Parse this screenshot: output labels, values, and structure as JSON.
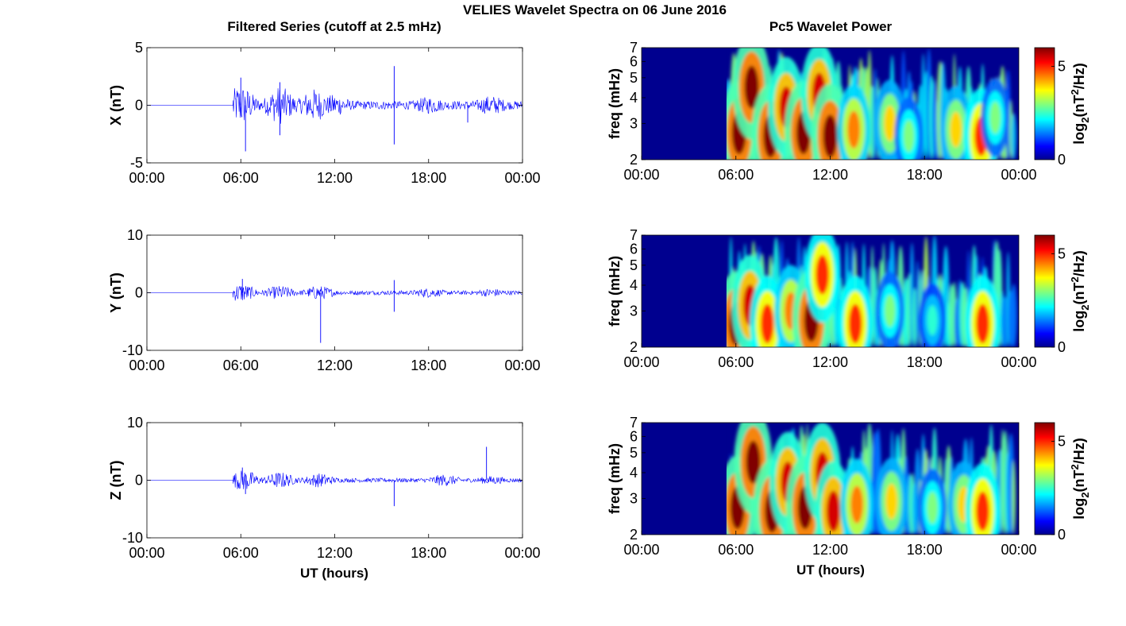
{
  "figure": {
    "title": "VELIES Wavelet Spectra on 06 June 2016",
    "left_column_title": "Filtered Series (cutoff at 2.5 mHz)",
    "right_column_title": "Pc5 Wavelet Power",
    "x_axis_label": "UT (hours)",
    "x_tick_labels": [
      "00:00",
      "06:00",
      "12:00",
      "18:00",
      "00:00"
    ],
    "colorbar_label": "log2(nT2/Hz)",
    "colorbar_label_parts": {
      "base": "log",
      "sub": "2",
      "mid": "(nT",
      "sup": "2",
      "end": "/Hz)"
    },
    "colors": {
      "series_line": "#0000ff",
      "zero_line": "#4040ff",
      "background_map": "#00008f"
    }
  },
  "chart_data": [
    {
      "type": "line",
      "panel": "X filtered series",
      "ylabel": "X (nT)",
      "ylim": [
        -5,
        5
      ],
      "yticks": [
        "5",
        "0",
        "-5"
      ],
      "xlim_hours": [
        0,
        24
      ],
      "x_ticks_hours": [
        0,
        6,
        12,
        18,
        24
      ],
      "series": [
        {
          "name": "",
          "x_hours": [
            0,
            5.5,
            5.6,
            6.0,
            6.3,
            8.5,
            11.0,
            15.8,
            18.0,
            21.0,
            24.0
          ],
          "y": [
            0,
            0,
            0.8,
            2.4,
            -4.0,
            2.0,
            -1.3,
            3.4,
            -0.6,
            -1.5,
            0.3
          ]
        }
      ],
      "spikes": [
        {
          "x_hours": 6.0,
          "y": 2.4
        },
        {
          "x_hours": 6.3,
          "y": -4.0
        },
        {
          "x_hours": 8.5,
          "y": 2.0
        },
        {
          "x_hours": 8.5,
          "y": -2.6
        },
        {
          "x_hours": 15.8,
          "y": 3.4
        },
        {
          "x_hours": 15.8,
          "y": -3.4
        },
        {
          "x_hours": 20.5,
          "y": -1.5
        }
      ],
      "onset_hours": 5.5,
      "envelope_peaks": [
        {
          "x_hours": 6.0,
          "amp": 1.5
        },
        {
          "x_hours": 8.5,
          "amp": 1.4
        },
        {
          "x_hours": 10.7,
          "amp": 1.2
        },
        {
          "x_hours": 12.0,
          "amp": 0.7
        },
        {
          "x_hours": 18.0,
          "amp": 0.5
        },
        {
          "x_hours": 22.0,
          "amp": 0.6
        }
      ]
    },
    {
      "type": "line",
      "panel": "Y filtered series",
      "ylabel": "Y (nT)",
      "ylim": [
        -10,
        10
      ],
      "yticks": [
        "10",
        "0",
        "-10"
      ],
      "xlim_hours": [
        0,
        24
      ],
      "x_ticks_hours": [
        0,
        6,
        12,
        18,
        24
      ],
      "series": [
        {
          "name": "",
          "x_hours": [
            0,
            5.5,
            6.0,
            8.5,
            11.1,
            15.8,
            24.0
          ],
          "y": [
            0,
            0,
            2.4,
            -1.0,
            -8.7,
            2.2,
            0.2
          ]
        }
      ],
      "spikes": [
        {
          "x_hours": 6.1,
          "y": 2.4
        },
        {
          "x_hours": 11.1,
          "y": -8.7
        },
        {
          "x_hours": 15.8,
          "y": 2.2
        },
        {
          "x_hours": 15.8,
          "y": -3.3
        }
      ],
      "onset_hours": 5.5,
      "envelope_peaks": [
        {
          "x_hours": 6.0,
          "amp": 1.4
        },
        {
          "x_hours": 8.5,
          "amp": 1.0
        },
        {
          "x_hours": 11.0,
          "amp": 1.0
        },
        {
          "x_hours": 18.0,
          "amp": 0.6
        },
        {
          "x_hours": 22.0,
          "amp": 0.5
        }
      ]
    },
    {
      "type": "line",
      "panel": "Z filtered series",
      "ylabel": "Z (nT)",
      "ylim": [
        -10,
        10
      ],
      "yticks": [
        "10",
        "0",
        "-10"
      ],
      "xlim_hours": [
        0,
        24
      ],
      "x_ticks_hours": [
        0,
        6,
        12,
        18,
        24
      ],
      "series": [
        {
          "name": "",
          "x_hours": [
            0,
            5.5,
            6.0,
            8.5,
            15.8,
            21.7,
            24.0
          ],
          "y": [
            0,
            0,
            2.2,
            -1.6,
            -4.5,
            5.8,
            0.2
          ]
        }
      ],
      "spikes": [
        {
          "x_hours": 6.1,
          "y": 2.2
        },
        {
          "x_hours": 6.3,
          "y": -2.4
        },
        {
          "x_hours": 15.8,
          "y": -4.5
        },
        {
          "x_hours": 21.7,
          "y": 5.8
        }
      ],
      "onset_hours": 5.5,
      "envelope_peaks": [
        {
          "x_hours": 6.2,
          "amp": 1.6
        },
        {
          "x_hours": 8.5,
          "amp": 1.2
        },
        {
          "x_hours": 11.0,
          "amp": 1.0
        },
        {
          "x_hours": 19.0,
          "amp": 0.8
        },
        {
          "x_hours": 22.0,
          "amp": 0.5
        }
      ]
    },
    {
      "type": "heatmap",
      "panel": "X wavelet power",
      "ylabel": "freq (mHz)",
      "yscale": "log",
      "ylim": [
        2,
        7
      ],
      "yticks": [
        "7",
        "6",
        "5",
        "4",
        "3",
        "2"
      ],
      "xlim_hours": [
        0,
        24
      ],
      "x_ticks_hours": [
        0,
        6,
        12,
        18,
        24
      ],
      "colorbar": {
        "range": [
          0,
          6
        ],
        "ticks": [
          "5",
          "0"
        ],
        "colormap": "jet"
      },
      "onset_hours": 5.5,
      "blobs": [
        {
          "x_hours": 6.2,
          "freq": 2.7,
          "power": 6
        },
        {
          "x_hours": 7.0,
          "freq": 4.5,
          "power": 6
        },
        {
          "x_hours": 8.2,
          "freq": 2.6,
          "power": 6
        },
        {
          "x_hours": 9.2,
          "freq": 3.6,
          "power": 5.5
        },
        {
          "x_hours": 10.3,
          "freq": 2.7,
          "power": 6
        },
        {
          "x_hours": 11.3,
          "freq": 4.2,
          "power": 5.5
        },
        {
          "x_hours": 12.0,
          "freq": 2.6,
          "power": 6
        },
        {
          "x_hours": 13.5,
          "freq": 2.8,
          "power": 4.5
        },
        {
          "x_hours": 15.8,
          "freq": 3.0,
          "power": 4
        },
        {
          "x_hours": 17.0,
          "freq": 2.6,
          "power": 3
        },
        {
          "x_hours": 20.0,
          "freq": 2.8,
          "power": 4
        },
        {
          "x_hours": 21.6,
          "freq": 2.6,
          "power": 5
        },
        {
          "x_hours": 22.5,
          "freq": 3.2,
          "power": 3
        }
      ]
    },
    {
      "type": "heatmap",
      "panel": "Y wavelet power",
      "ylabel": "freq (mHz)",
      "yscale": "log",
      "ylim": [
        2,
        7
      ],
      "yticks": [
        "7",
        "6",
        "5",
        "4",
        "3",
        "2"
      ],
      "xlim_hours": [
        0,
        24
      ],
      "x_ticks_hours": [
        0,
        6,
        12,
        18,
        24
      ],
      "colorbar": {
        "range": [
          0,
          6
        ],
        "ticks": [
          "5",
          "0"
        ],
        "colormap": "jet"
      },
      "onset_hours": 5.5,
      "blobs": [
        {
          "x_hours": 6.0,
          "freq": 2.6,
          "power": 6
        },
        {
          "x_hours": 6.9,
          "freq": 3.2,
          "power": 5.5
        },
        {
          "x_hours": 8.0,
          "freq": 2.6,
          "power": 5
        },
        {
          "x_hours": 9.5,
          "freq": 3.0,
          "power": 4.5
        },
        {
          "x_hours": 10.8,
          "freq": 2.7,
          "power": 6
        },
        {
          "x_hours": 11.5,
          "freq": 4.5,
          "power": 5
        },
        {
          "x_hours": 13.6,
          "freq": 2.6,
          "power": 5
        },
        {
          "x_hours": 15.8,
          "freq": 3.0,
          "power": 3
        },
        {
          "x_hours": 18.5,
          "freq": 2.7,
          "power": 2.5
        },
        {
          "x_hours": 21.7,
          "freq": 2.6,
          "power": 5
        }
      ]
    },
    {
      "type": "heatmap",
      "panel": "Z wavelet power",
      "ylabel": "freq (mHz)",
      "yscale": "log",
      "ylim": [
        2,
        7
      ],
      "yticks": [
        "7",
        "6",
        "5",
        "4",
        "3",
        "2"
      ],
      "xlim_hours": [
        0,
        24
      ],
      "x_ticks_hours": [
        0,
        6,
        12,
        18,
        24
      ],
      "colorbar": {
        "range": [
          0,
          6
        ],
        "ticks": [
          "5",
          "0"
        ],
        "colormap": "jet"
      },
      "onset_hours": 5.5,
      "blobs": [
        {
          "x_hours": 6.1,
          "freq": 2.7,
          "power": 6
        },
        {
          "x_hours": 7.1,
          "freq": 4.5,
          "power": 6
        },
        {
          "x_hours": 8.3,
          "freq": 2.6,
          "power": 6
        },
        {
          "x_hours": 9.3,
          "freq": 3.6,
          "power": 5.5
        },
        {
          "x_hours": 10.4,
          "freq": 2.7,
          "power": 6
        },
        {
          "x_hours": 11.5,
          "freq": 4.0,
          "power": 5.5
        },
        {
          "x_hours": 12.2,
          "freq": 2.6,
          "power": 5.5
        },
        {
          "x_hours": 13.7,
          "freq": 2.8,
          "power": 4.5
        },
        {
          "x_hours": 15.9,
          "freq": 2.9,
          "power": 4
        },
        {
          "x_hours": 18.5,
          "freq": 2.7,
          "power": 3
        },
        {
          "x_hours": 20.5,
          "freq": 2.8,
          "power": 4
        },
        {
          "x_hours": 21.7,
          "freq": 2.6,
          "power": 5
        }
      ]
    }
  ]
}
